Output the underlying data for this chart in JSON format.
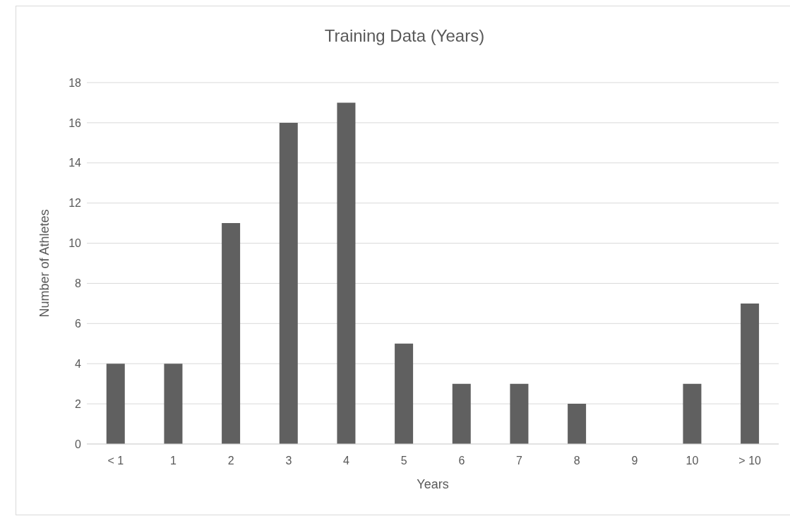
{
  "chart_data": {
    "type": "bar",
    "title": "Training Data (Years)",
    "xlabel": "Years",
    "ylabel": "Number of Athletes",
    "categories": [
      "< 1",
      "1",
      "2",
      "3",
      "4",
      "5",
      "6",
      "7",
      "8",
      "9",
      "10",
      "> 10"
    ],
    "values": [
      4,
      4,
      11,
      16,
      17,
      5,
      3,
      3,
      2,
      0,
      3,
      7
    ],
    "color": "#606060",
    "ylim": [
      0,
      18
    ],
    "yticks": [
      0,
      2,
      4,
      6,
      8,
      10,
      12,
      14,
      16,
      18
    ],
    "grid": "y"
  }
}
